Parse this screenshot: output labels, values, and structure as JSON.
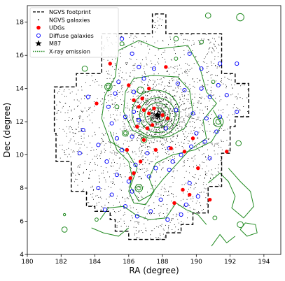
{
  "chart_data": {
    "type": "scatter",
    "title": "",
    "xlabel": "RA (degree)",
    "ylabel": "Dec (degree)",
    "xlim": [
      180,
      195
    ],
    "ylim": [
      4,
      19
    ],
    "x_inverted": false,
    "grid": false,
    "legend_position": "top-left",
    "x_ticks": [
      "180",
      "182",
      "184",
      "186",
      "188",
      "190",
      "192",
      "194"
    ],
    "y_ticks": [
      "4",
      "6",
      "8",
      "10",
      "12",
      "14",
      "16",
      "18"
    ],
    "legend": [
      {
        "label": "NGVS footprint",
        "marker": "dashed-line",
        "color": "#000000"
      },
      {
        "label": "NGVS galaxies",
        "marker": "dot",
        "color": "#000000"
      },
      {
        "label": "UDGs",
        "marker": "filled-circle",
        "color": "#ff0000"
      },
      {
        "label": "Diffuse galaxies",
        "marker": "open-circle",
        "color": "#0000ff"
      },
      {
        "label": "M87",
        "marker": "star",
        "color": "#000000"
      },
      {
        "label": "X-ray emission",
        "marker": "dotted-line",
        "color": "#228b22"
      }
    ],
    "footprint": [
      [
        181.6,
        14.1
      ],
      [
        182.9,
        14.1
      ],
      [
        182.9,
        14.9
      ],
      [
        184.4,
        14.9
      ],
      [
        184.4,
        17.3
      ],
      [
        187.4,
        17.3
      ],
      [
        187.4,
        18.5
      ],
      [
        188.2,
        18.5
      ],
      [
        188.2,
        17.3
      ],
      [
        191.5,
        17.3
      ],
      [
        191.5,
        14.9
      ],
      [
        192.3,
        14.9
      ],
      [
        192.3,
        14.3
      ],
      [
        193.1,
        14.3
      ],
      [
        193.1,
        12.3
      ],
      [
        192.3,
        12.3
      ],
      [
        192.3,
        11.7
      ],
      [
        192.0,
        11.7
      ],
      [
        192.0,
        10.1
      ],
      [
        191.5,
        10.1
      ],
      [
        191.5,
        8.1
      ],
      [
        190.7,
        8.1
      ],
      [
        190.7,
        6.5
      ],
      [
        189.8,
        6.5
      ],
      [
        189.8,
        5.8
      ],
      [
        189.1,
        5.8
      ],
      [
        189.1,
        5.3
      ],
      [
        188.2,
        5.3
      ],
      [
        188.2,
        4.9
      ],
      [
        186.0,
        4.9
      ],
      [
        186.0,
        5.4
      ],
      [
        185.2,
        5.4
      ],
      [
        185.2,
        6.1
      ],
      [
        184.9,
        6.1
      ],
      [
        184.9,
        6.6
      ],
      [
        184.0,
        6.6
      ],
      [
        184.0,
        6.9
      ],
      [
        183.5,
        6.9
      ],
      [
        183.5,
        7.8
      ],
      [
        182.6,
        7.8
      ],
      [
        182.6,
        9.6
      ],
      [
        181.7,
        9.6
      ],
      [
        181.7,
        11.3
      ],
      [
        181.6,
        11.3
      ],
      [
        181.6,
        14.1
      ]
    ],
    "m87": [
      187.7,
      12.4
    ],
    "udgs": [
      [
        184.9,
        15.5
      ],
      [
        188.2,
        15.3
      ],
      [
        186.0,
        14.2
      ],
      [
        187.2,
        14.0
      ],
      [
        184.1,
        13.1
      ],
      [
        186.3,
        13.3
      ],
      [
        186.8,
        13.4
      ],
      [
        186.6,
        12.9
      ],
      [
        186.9,
        12.7
      ],
      [
        187.2,
        12.5
      ],
      [
        187.5,
        12.8
      ],
      [
        188.0,
        12.4
      ],
      [
        188.3,
        12.2
      ],
      [
        187.4,
        11.8
      ],
      [
        186.5,
        11.7
      ],
      [
        187.1,
        11.6
      ],
      [
        189.8,
        11.0
      ],
      [
        187.6,
        10.3
      ],
      [
        186.9,
        10.9
      ],
      [
        189.3,
        10.2
      ],
      [
        185.9,
        10.3
      ],
      [
        188.5,
        10.4
      ],
      [
        186.7,
        9.6
      ],
      [
        191.8,
        10.2
      ],
      [
        190.1,
        9.2
      ],
      [
        186.3,
        8.9
      ],
      [
        186.1,
        8.6
      ],
      [
        189.2,
        7.9
      ],
      [
        190.8,
        7.3
      ],
      [
        189.6,
        7.6
      ],
      [
        188.7,
        7.1
      ]
    ],
    "diffuse": [
      [
        185.6,
        17.0
      ],
      [
        186.2,
        16.1
      ],
      [
        186.6,
        15.3
      ],
      [
        187.5,
        15.2
      ],
      [
        189.6,
        16.1
      ],
      [
        190.3,
        15.2
      ],
      [
        191.4,
        15.5
      ],
      [
        192.4,
        15.5
      ],
      [
        185.4,
        14.4
      ],
      [
        186.9,
        14.6
      ],
      [
        188.9,
        14.3
      ],
      [
        190.3,
        14.0
      ],
      [
        191.3,
        14.2
      ],
      [
        183.6,
        13.5
      ],
      [
        185.2,
        13.7
      ],
      [
        186.3,
        13.8
      ],
      [
        189.3,
        13.9
      ],
      [
        190.8,
        13.5
      ],
      [
        191.8,
        13.6
      ],
      [
        184.8,
        12.9
      ],
      [
        185.8,
        12.3
      ],
      [
        186.3,
        12.6
      ],
      [
        188.8,
        12.7
      ],
      [
        189.8,
        12.5
      ],
      [
        190.6,
        12.2
      ],
      [
        191.4,
        12.3
      ],
      [
        192.4,
        12.6
      ],
      [
        185.0,
        11.9
      ],
      [
        186.6,
        12.1
      ],
      [
        188.2,
        11.6
      ],
      [
        190.0,
        11.3
      ],
      [
        191.2,
        11.4
      ],
      [
        183.3,
        11.5
      ],
      [
        185.3,
        11.0
      ],
      [
        186.2,
        11.1
      ],
      [
        189.7,
        10.5
      ],
      [
        190.5,
        10.8
      ],
      [
        184.2,
        10.6
      ],
      [
        185.6,
        10.3
      ],
      [
        187.1,
        10.1
      ],
      [
        188.4,
        10.4
      ],
      [
        189.1,
        10.0
      ],
      [
        183.1,
        10.1
      ],
      [
        184.7,
        9.6
      ],
      [
        186.4,
        9.4
      ],
      [
        187.6,
        9.2
      ],
      [
        188.6,
        9.6
      ],
      [
        190.8,
        9.8
      ],
      [
        185.3,
        8.8
      ],
      [
        186.0,
        8.4
      ],
      [
        187.2,
        8.7
      ],
      [
        188.4,
        9.1
      ],
      [
        189.6,
        8.3
      ],
      [
        184.2,
        8.0
      ],
      [
        185.0,
        7.6
      ],
      [
        186.2,
        7.8
      ],
      [
        187.9,
        7.3
      ],
      [
        189.4,
        7.0
      ],
      [
        190.1,
        7.5
      ],
      [
        184.6,
        6.7
      ],
      [
        185.8,
        6.9
      ],
      [
        186.5,
        6.3
      ],
      [
        187.3,
        6.6
      ],
      [
        188.3,
        6.1
      ],
      [
        189.1,
        6.4
      ]
    ],
    "xray_rings": [
      [
        187.7,
        12.4,
        0.45
      ],
      [
        187.7,
        12.4,
        0.75
      ],
      [
        187.7,
        12.4,
        1.05
      ],
      [
        187.6,
        12.5,
        1.4
      ],
      [
        184.8,
        14.1,
        0.22
      ],
      [
        184.8,
        14.1,
        0.12
      ],
      [
        186.7,
        13.9,
        0.2
      ],
      [
        185.3,
        12.9,
        0.12
      ],
      [
        191.3,
        12.0,
        0.3
      ],
      [
        191.3,
        12.0,
        0.15
      ],
      [
        185.8,
        11.3,
        0.18
      ],
      [
        185.8,
        11.3,
        0.1
      ],
      [
        186.9,
        10.9,
        0.18
      ],
      [
        186.9,
        10.9,
        0.09
      ],
      [
        186.6,
        8.0,
        0.22
      ],
      [
        186.6,
        8.0,
        0.12
      ],
      [
        190.7,
        18.4,
        0.16
      ],
      [
        192.6,
        18.3,
        0.22
      ],
      [
        183.4,
        15.2,
        0.16
      ],
      [
        188.8,
        17.0,
        0.14
      ],
      [
        190.3,
        16.8,
        0.12
      ],
      [
        185.6,
        16.7,
        0.12
      ],
      [
        192.5,
        10.7,
        0.16
      ],
      [
        182.2,
        5.5,
        0.16
      ],
      [
        182.2,
        6.4,
        0.07
      ],
      [
        184.1,
        6.1,
        0.1
      ],
      [
        191.1,
        6.2,
        0.12
      ],
      [
        192.6,
        5.8,
        0.18
      ],
      [
        188.8,
        15.8,
        0.1
      ],
      [
        191.0,
        14.4,
        0.1
      ]
    ],
    "xray_contours": [
      [
        [
          186.3,
          14.6
        ],
        [
          187.4,
          14.8
        ],
        [
          188.9,
          14.7
        ],
        [
          189.6,
          13.9
        ],
        [
          189.8,
          12.6
        ],
        [
          189.3,
          11.6
        ],
        [
          188.4,
          11.1
        ],
        [
          187.2,
          11.0
        ],
        [
          186.2,
          11.5
        ],
        [
          185.7,
          12.6
        ],
        [
          185.8,
          13.8
        ],
        [
          186.3,
          14.6
        ]
      ],
      [
        [
          185.4,
          16.3
        ],
        [
          186.6,
          16.9
        ],
        [
          187.8,
          16.4
        ],
        [
          189.5,
          16.6
        ],
        [
          190.2,
          15.3
        ],
        [
          190.6,
          13.8
        ],
        [
          191.2,
          13.1
        ],
        [
          190.4,
          12.1
        ],
        [
          190.6,
          11.0
        ],
        [
          189.6,
          10.3
        ],
        [
          188.8,
          9.4
        ],
        [
          188.0,
          8.5
        ],
        [
          187.3,
          7.6
        ],
        [
          186.6,
          7.2
        ],
        [
          186.1,
          8.1
        ],
        [
          186.5,
          9.2
        ],
        [
          185.9,
          10.2
        ],
        [
          184.9,
          10.8
        ],
        [
          184.4,
          12.2
        ],
        [
          184.6,
          13.6
        ],
        [
          185.2,
          14.7
        ],
        [
          185.4,
          16.3
        ]
      ],
      [
        [
          184.9,
          11.4
        ],
        [
          185.3,
          10.3
        ],
        [
          186.0,
          9.6
        ],
        [
          186.2,
          8.7
        ],
        [
          186.0,
          7.8
        ],
        [
          186.3,
          7.1
        ],
        [
          187.0,
          7.0
        ],
        [
          187.5,
          7.8
        ],
        [
          187.2,
          8.6
        ],
        [
          187.6,
          9.5
        ],
        [
          188.6,
          10.0
        ],
        [
          189.9,
          10.3
        ],
        [
          190.9,
          10.8
        ],
        [
          191.5,
          11.8
        ],
        [
          191.0,
          12.7
        ]
      ],
      [
        [
          184.3,
          6.1
        ],
        [
          184.8,
          6.8
        ],
        [
          185.7,
          6.9
        ],
        [
          186.4,
          6.4
        ],
        [
          187.2,
          6.1
        ],
        [
          188.2,
          6.2
        ],
        [
          188.8,
          7.1
        ],
        [
          189.4,
          6.7
        ],
        [
          190.1,
          6.4
        ],
        [
          190.6,
          5.8
        ]
      ],
      [
        [
          190.7,
          8.3
        ],
        [
          191.4,
          8.9
        ],
        [
          191.9,
          8.4
        ],
        [
          192.3,
          7.5
        ],
        [
          192.1,
          6.8
        ],
        [
          192.8,
          6.2
        ],
        [
          193.4,
          6.9
        ],
        [
          193.2,
          7.8
        ],
        [
          192.6,
          8.4
        ],
        [
          191.9,
          9.2
        ]
      ],
      [
        [
          183.8,
          5.6
        ],
        [
          184.5,
          5.3
        ],
        [
          185.4,
          5.1
        ],
        [
          186.0,
          5.6
        ]
      ],
      [
        [
          190.9,
          4.5
        ],
        [
          191.4,
          5.2
        ],
        [
          191.8,
          4.7
        ],
        [
          192.3,
          5.1
        ]
      ],
      [
        [
          192.6,
          5.5
        ],
        [
          193.0,
          5.1
        ],
        [
          193.6,
          5.3
        ],
        [
          193.5,
          5.8
        ],
        [
          192.9,
          5.9
        ],
        [
          192.6,
          5.5
        ]
      ]
    ],
    "galaxy_count": 2600,
    "galaxy_seed": 7
  }
}
